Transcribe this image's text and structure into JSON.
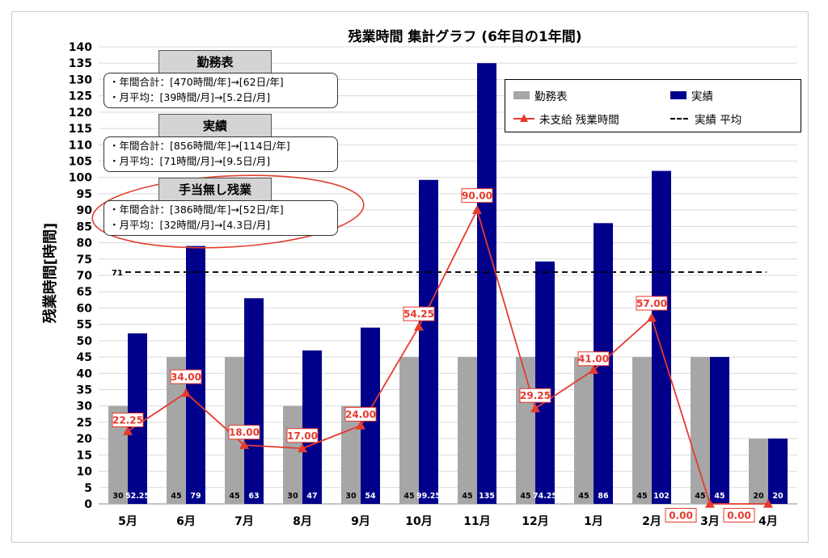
{
  "chart_data": {
    "type": "bar",
    "title": "残業時間 集計グラフ (6年目の1年間)",
    "ylabel": "残業時間[時間]",
    "xlabel": "",
    "ylim": [
      0,
      140
    ],
    "y_tick_step": 5,
    "grid": true,
    "categories": [
      "5月",
      "6月",
      "7月",
      "8月",
      "9月",
      "10月",
      "11月",
      "12月",
      "1月",
      "2月",
      "3月",
      "4月"
    ],
    "series": [
      {
        "name": "勤務表",
        "kind": "bar",
        "color": "#a6a6a6",
        "values": [
          30,
          45,
          45,
          30,
          30,
          45,
          45,
          45,
          45,
          45,
          45,
          20
        ],
        "labels": [
          "30",
          "45",
          "45",
          "30",
          "30",
          "45",
          "45",
          "45",
          "45",
          "45",
          "45",
          "20"
        ]
      },
      {
        "name": "実績",
        "kind": "bar",
        "color": "#00008b",
        "values": [
          52.25,
          79,
          63,
          47,
          54,
          99.25,
          135,
          74.25,
          86,
          102,
          45,
          20
        ],
        "labels": [
          "52.25",
          "79",
          "63",
          "47",
          "54",
          "99.25",
          "135",
          "74.25",
          "86",
          "102",
          "45",
          "20"
        ]
      },
      {
        "name": "未支給 残業時間",
        "kind": "line",
        "color": "#e53a2e",
        "values": [
          22.25,
          34,
          18,
          17,
          24,
          54.25,
          90,
          29.25,
          41,
          57,
          0,
          0
        ],
        "labels": [
          "22.25",
          "34.00",
          "18.00",
          "17.00",
          "24.00",
          "54.25",
          "90.00",
          "29.25",
          "41.00",
          "57.00",
          "0.00",
          "0.00"
        ]
      }
    ],
    "average": {
      "name": "実績 平均",
      "value": 71,
      "label": "71"
    },
    "legend": {
      "position": "top-right",
      "items": [
        "勤務表",
        "実績",
        "未支給 残業時間",
        "実績 平均"
      ]
    }
  },
  "summary_boxes": [
    {
      "title": "勤務表",
      "line1": "・年間合計：[470時間/年]→[62日/年]",
      "line2": "・月平均：[39時間/月]→[5.2日/月]"
    },
    {
      "title": "実績",
      "line1": "・年間合計：[856時間/年]→[114日/年]",
      "line2": "・月平均：[71時間/月]→[9.5日/月]"
    },
    {
      "title": "手当無し残業",
      "line1": "・年間合計：[386時間/年]→[52日/年]",
      "line2": "・月平均：[32時間/月]→[4.3日/月]"
    }
  ],
  "colors": {
    "gray_bar": "#a6a6a6",
    "navy_bar": "#00008b",
    "red_line": "#e53a2e",
    "avg_line": "#000000"
  }
}
